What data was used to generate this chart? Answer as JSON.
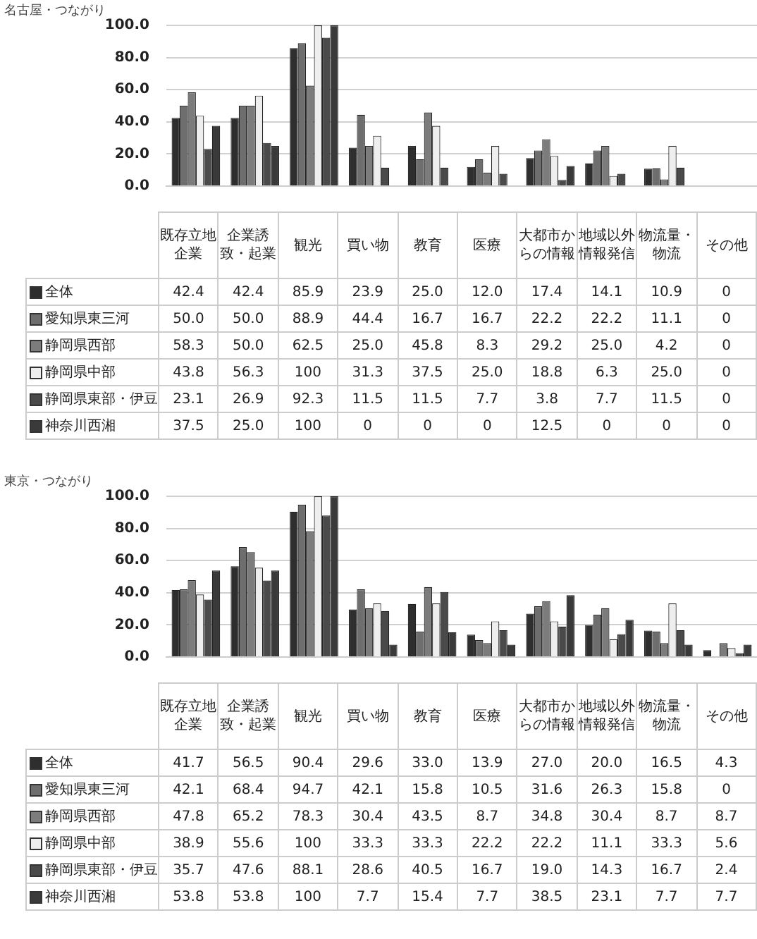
{
  "chart_data": [
    {
      "type": "bar",
      "title": "名古屋・つながり",
      "categories": [
        "既存立地企業",
        "企業誘致・起業",
        "観光",
        "買い物",
        "教育",
        "医療",
        "大都市からの情報",
        "地域以外情報発信",
        "物流量・物流",
        "その他"
      ],
      "series": [
        {
          "name": "全体",
          "color": "#2e2e2e",
          "values": [
            42.4,
            42.4,
            85.9,
            23.9,
            25.0,
            12.0,
            17.4,
            14.1,
            10.9,
            0
          ],
          "value_labels": [
            "42.4",
            "42.4",
            "85.9",
            "23.9",
            "25.0",
            "12.0",
            "17.4",
            "14.1",
            "10.9",
            "0"
          ]
        },
        {
          "name": "愛知県東三河",
          "color": "#6e6e6e",
          "values": [
            50.0,
            50.0,
            88.9,
            44.4,
            16.7,
            16.7,
            22.2,
            22.2,
            11.1,
            0
          ],
          "value_labels": [
            "50.0",
            "50.0",
            "88.9",
            "44.4",
            "16.7",
            "16.7",
            "22.2",
            "22.2",
            "11.1",
            "0"
          ]
        },
        {
          "name": "静岡県西部",
          "color": "#7c7c7c",
          "values": [
            58.3,
            50.0,
            62.5,
            25.0,
            45.8,
            8.3,
            29.2,
            25.0,
            4.2,
            0
          ],
          "value_labels": [
            "58.3",
            "50.0",
            "62.5",
            "25.0",
            "45.8",
            "8.3",
            "29.2",
            "25.0",
            "4.2",
            "0"
          ]
        },
        {
          "name": "静岡県中部",
          "color": "#eeeeee",
          "values": [
            43.8,
            56.3,
            100,
            31.3,
            37.5,
            25.0,
            18.8,
            6.3,
            25.0,
            0
          ],
          "value_labels": [
            "43.8",
            "56.3",
            "100",
            "31.3",
            "37.5",
            "25.0",
            "18.8",
            "6.3",
            "25.0",
            "0"
          ]
        },
        {
          "name": "静岡県東部・伊豆",
          "color": "#4a4a4a",
          "values": [
            23.1,
            26.9,
            92.3,
            11.5,
            11.5,
            7.7,
            3.8,
            7.7,
            11.5,
            0
          ],
          "value_labels": [
            "23.1",
            "26.9",
            "92.3",
            "11.5",
            "11.5",
            "7.7",
            "3.8",
            "7.7",
            "11.5",
            "0"
          ]
        },
        {
          "name": "神奈川西湘",
          "color": "#3a3a3a",
          "values": [
            37.5,
            25.0,
            100,
            0,
            0,
            0,
            12.5,
            0,
            0,
            0
          ],
          "value_labels": [
            "37.5",
            "25.0",
            "100",
            "0",
            "0",
            "0",
            "12.5",
            "0",
            "0",
            "0"
          ]
        }
      ],
      "ylim": [
        0,
        100
      ],
      "yticks": [
        {
          "value": 0,
          "label": "0.0"
        },
        {
          "value": 20,
          "label": "20.0"
        },
        {
          "value": 40,
          "label": "40.0"
        },
        {
          "value": 60,
          "label": "60.0"
        },
        {
          "value": 80,
          "label": "80.0"
        },
        {
          "value": 100,
          "label": "100.0"
        }
      ],
      "grid": "y",
      "legend": "bottom",
      "tick_labels": "y"
    },
    {
      "type": "bar",
      "title": "東京・つながり",
      "categories": [
        "既存立地企業",
        "企業誘致・起業",
        "観光",
        "買い物",
        "教育",
        "医療",
        "大都市からの情報",
        "地域以外情報発信",
        "物流量・物流",
        "その他"
      ],
      "series": [
        {
          "name": "全体",
          "color": "#2e2e2e",
          "values": [
            41.7,
            56.5,
            90.4,
            29.6,
            33.0,
            13.9,
            27.0,
            20.0,
            16.5,
            4.3
          ],
          "value_labels": [
            "41.7",
            "56.5",
            "90.4",
            "29.6",
            "33.0",
            "13.9",
            "27.0",
            "20.0",
            "16.5",
            "4.3"
          ]
        },
        {
          "name": "愛知県東三河",
          "color": "#6e6e6e",
          "values": [
            42.1,
            68.4,
            94.7,
            42.1,
            15.8,
            10.5,
            31.6,
            26.3,
            15.8,
            0
          ],
          "value_labels": [
            "42.1",
            "68.4",
            "94.7",
            "42.1",
            "15.8",
            "10.5",
            "31.6",
            "26.3",
            "15.8",
            "0"
          ]
        },
        {
          "name": "静岡県西部",
          "color": "#7c7c7c",
          "values": [
            47.8,
            65.2,
            78.3,
            30.4,
            43.5,
            8.7,
            34.8,
            30.4,
            8.7,
            8.7
          ],
          "value_labels": [
            "47.8",
            "65.2",
            "78.3",
            "30.4",
            "43.5",
            "8.7",
            "34.8",
            "30.4",
            "8.7",
            "8.7"
          ]
        },
        {
          "name": "静岡県中部",
          "color": "#eeeeee",
          "values": [
            38.9,
            55.6,
            100,
            33.3,
            33.3,
            22.2,
            22.2,
            11.1,
            33.3,
            5.6
          ],
          "value_labels": [
            "38.9",
            "55.6",
            "100",
            "33.3",
            "33.3",
            "22.2",
            "22.2",
            "11.1",
            "33.3",
            "5.6"
          ]
        },
        {
          "name": "静岡県東部・伊豆",
          "color": "#4a4a4a",
          "values": [
            35.7,
            47.6,
            88.1,
            28.6,
            40.5,
            16.7,
            19.0,
            14.3,
            16.7,
            2.4
          ],
          "value_labels": [
            "35.7",
            "47.6",
            "88.1",
            "28.6",
            "40.5",
            "16.7",
            "19.0",
            "14.3",
            "16.7",
            "2.4"
          ]
        },
        {
          "name": "神奈川西湘",
          "color": "#3a3a3a",
          "values": [
            53.8,
            53.8,
            100,
            7.7,
            15.4,
            7.7,
            38.5,
            23.1,
            7.7,
            7.7
          ],
          "value_labels": [
            "53.8",
            "53.8",
            "100",
            "7.7",
            "15.4",
            "7.7",
            "38.5",
            "23.1",
            "7.7",
            "7.7"
          ]
        }
      ],
      "ylim": [
        0,
        100
      ],
      "yticks": [
        {
          "value": 0,
          "label": "0.0"
        },
        {
          "value": 20,
          "label": "20.0"
        },
        {
          "value": 40,
          "label": "40.0"
        },
        {
          "value": 60,
          "label": "60.0"
        },
        {
          "value": 80,
          "label": "80.0"
        },
        {
          "value": 100,
          "label": "100.0"
        }
      ],
      "grid": "y",
      "legend": "bottom",
      "tick_labels": "y"
    }
  ]
}
